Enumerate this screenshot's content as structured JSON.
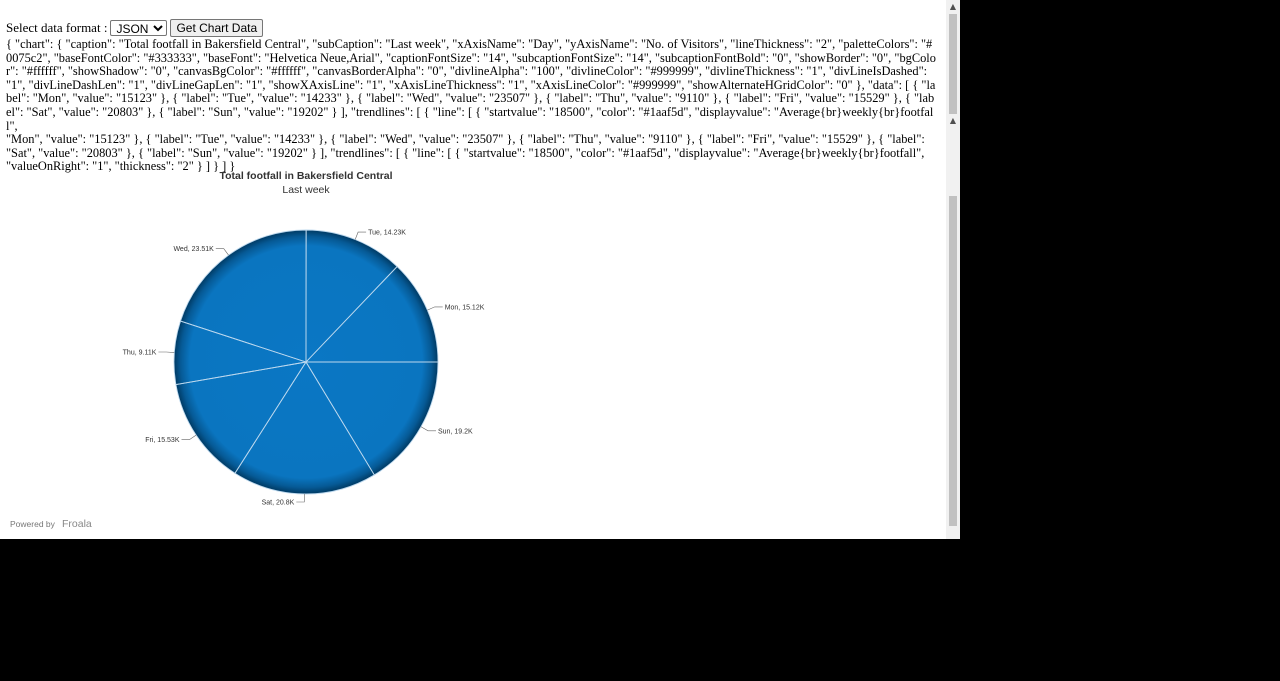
{
  "controls": {
    "format_label": "Select data format :",
    "format_value": "JSON",
    "button_label": "Get Chart Data"
  },
  "json_line1": "{ \"chart\": { \"caption\": \"Total footfall in Bakersfield Central\", \"subCaption\": \"Last week\", \"xAxisName\": \"Day\", \"yAxisName\": \"No. of Visitors\", \"lineThickness\": \"2\", \"paletteColors\": \"#0075c2\", \"baseFontColor\": \"#333333\", \"baseFont\": \"Helvetica Neue,Arial\", \"captionFontSize\": \"14\", \"subcaptionFontSize\": \"14\", \"subcaptionFontBold\": \"0\", \"showBorder\": \"0\", \"bgColor\": \"#ffffff\", \"showShadow\": \"0\", \"canvasBgColor\": \"#ffffff\", \"canvasBorderAlpha\": \"0\", \"divlineAlpha\": \"100\", \"divlineColor\": \"#999999\", \"divlineThickness\": \"1\", \"divLineIsDashed\": \"1\", \"divLineDashLen\": \"1\", \"divLineGapLen\": \"1\", \"showXAxisLine\": \"1\", \"xAxisLineThickness\": \"1\", \"xAxisLineColor\": \"#999999\", \"showAlternateHGridColor\": \"0\" }, \"data\": [ { \"label\": \"Mon\", \"value\": \"15123\" }, { \"label\": \"Tue\", \"value\": \"14233\" }, { \"label\": \"Wed\", \"value\": \"23507\" }, { \"label\": \"Thu\", \"value\": \"9110\" }, { \"label\": \"Fri\", \"value\": \"15529\" }, { \"label\": \"Sat\", \"value\": \"20803\" }, { \"label\": \"Sun\", \"value\": \"19202\" } ], \"trendlines\": [ { \"line\": [ { \"startvalue\": \"18500\", \"color\": \"#1aaf5d\", \"displayvalue\": \"Average{br}weekly{br}footfall\",",
  "json_line2": "\"Mon\", \"value\": \"15123\" }, { \"label\": \"Tue\", \"value\": \"14233\" }, { \"label\": \"Wed\", \"value\": \"23507\" }, { \"label\": \"Thu\", \"value\": \"9110\" }, { \"label\": \"Fri\", \"value\": \"15529\" }, { \"label\": \"Sat\", \"value\": \"20803\" }, { \"label\": \"Sun\", \"value\": \"19202\" } ], \"trendlines\": [ { \"line\": [ { \"startvalue\": \"18500\", \"color\": \"#1aaf5d\", \"displayvalue\": \"Average{br}weekly{br}footfall\", \"valueOnRight\": \"1\", \"thickness\": \"2\" } ] } ] }",
  "chart_data": {
    "type": "pie",
    "title": "Total footfall in Bakersfield Central",
    "subtitle": "Last week",
    "categories": [
      "Mon",
      "Tue",
      "Wed",
      "Thu",
      "Fri",
      "Sat",
      "Sun"
    ],
    "values": [
      15123,
      14233,
      23507,
      9110,
      15529,
      20803,
      19202
    ],
    "data_labels": [
      "Mon, 15.12K",
      "Tue, 14.23K",
      "Wed, 23.51K",
      "Thu, 9.11K",
      "Fri, 15.53K",
      "Sat, 20.8K",
      "Sun, 19.2K"
    ],
    "color": "#0075c2",
    "edge_color": "#003f6b",
    "legend": "none"
  },
  "credit": {
    "prefix": "Powered by",
    "brand": "Froala"
  }
}
